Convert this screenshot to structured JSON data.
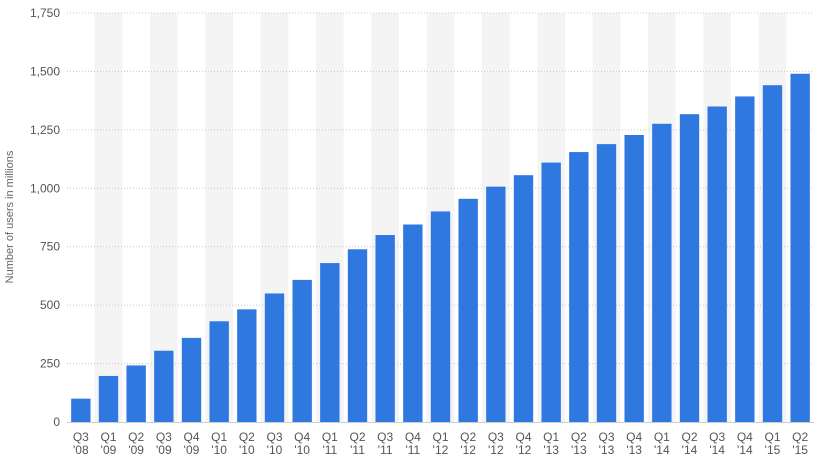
{
  "chart_data": {
    "type": "bar",
    "title": "",
    "xlabel": "",
    "ylabel": "Number of users in millions",
    "ylim": [
      0,
      1750
    ],
    "yticks": [
      0,
      250,
      500,
      750,
      1000,
      1250,
      1500,
      1750
    ],
    "ytick_labels": [
      "0",
      "250",
      "500",
      "750",
      "1,000",
      "1,250",
      "1,500",
      "1,750"
    ],
    "grid": "horizontal dotted",
    "categories": [
      [
        "Q3",
        "'08"
      ],
      [
        "Q1",
        "'09"
      ],
      [
        "Q2",
        "'09"
      ],
      [
        "Q3",
        "'09"
      ],
      [
        "Q4",
        "'09"
      ],
      [
        "Q1",
        "'10"
      ],
      [
        "Q2",
        "'10"
      ],
      [
        "Q3",
        "'10"
      ],
      [
        "Q4",
        "'10"
      ],
      [
        "Q1",
        "'11"
      ],
      [
        "Q2",
        "'11"
      ],
      [
        "Q3",
        "'11"
      ],
      [
        "Q4",
        "'11"
      ],
      [
        "Q1",
        "'12"
      ],
      [
        "Q2",
        "'12"
      ],
      [
        "Q3",
        "'12"
      ],
      [
        "Q4",
        "'12"
      ],
      [
        "Q1",
        "'13"
      ],
      [
        "Q2",
        "'13"
      ],
      [
        "Q3",
        "'13"
      ],
      [
        "Q4",
        "'13"
      ],
      [
        "Q1",
        "'14"
      ],
      [
        "Q2",
        "'14"
      ],
      [
        "Q3",
        "'14"
      ],
      [
        "Q4",
        "'14"
      ],
      [
        "Q1",
        "'15"
      ],
      [
        "Q2",
        "'15"
      ]
    ],
    "values": [
      100,
      197,
      242,
      305,
      360,
      431,
      482,
      550,
      608,
      680,
      739,
      800,
      845,
      901,
      955,
      1007,
      1056,
      1110,
      1155,
      1189,
      1228,
      1276,
      1317,
      1350,
      1393,
      1441,
      1490
    ],
    "colors": {
      "bar": "#2f78e0",
      "band": "#f4f4f4",
      "grid": "#c8c8c8"
    }
  }
}
